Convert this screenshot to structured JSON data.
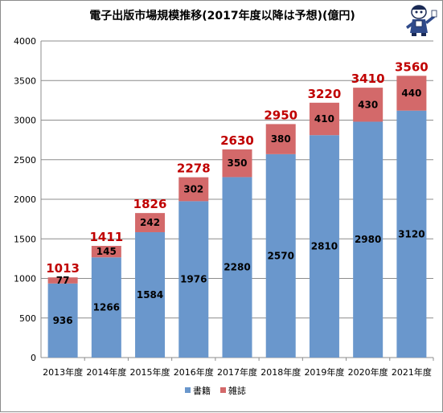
{
  "header": {
    "title": "電子出版市場規模推移(2017年度以降は予想)(億円)"
  },
  "legend": {
    "placement": "bottom"
  },
  "colors": {
    "books": "#6a97cc",
    "magazines": "#d3696a",
    "total_label": "#c00000",
    "grid": "#8c8c8c"
  },
  "chart_data": {
    "type": "bar",
    "stacked": true,
    "title": "電子出版市場規模推移(2017年度以降は予想)(億円)",
    "categories": [
      "2013年度",
      "2014年度",
      "2015年度",
      "2016年度",
      "2017年度",
      "2018年度",
      "2019年度",
      "2020年度",
      "2021年度"
    ],
    "series": [
      {
        "name": "書籍",
        "values": [
          936,
          1266,
          1584,
          1976,
          2280,
          2570,
          2810,
          2980,
          3120
        ]
      },
      {
        "name": "雑誌",
        "values": [
          77,
          145,
          242,
          302,
          350,
          380,
          410,
          430,
          440
        ]
      }
    ],
    "totals": [
      1013,
      1411,
      1826,
      2278,
      2630,
      2950,
      3220,
      3410,
      3560
    ],
    "ylim": [
      0,
      4000
    ],
    "yticks": [
      0,
      500,
      1000,
      1500,
      2000,
      2500,
      3000,
      3500,
      4000
    ],
    "grid": true,
    "xlabel": "",
    "ylabel": ""
  }
}
